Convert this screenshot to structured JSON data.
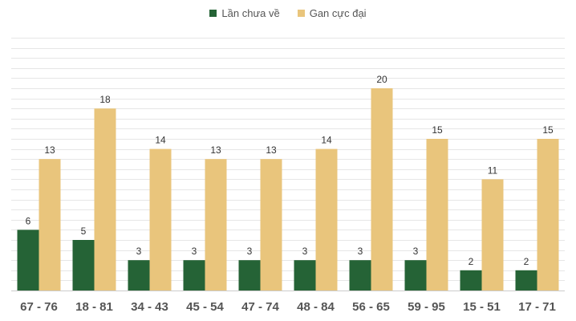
{
  "chart_data": {
    "type": "bar",
    "title": "",
    "xlabel": "",
    "ylabel": "",
    "ylim": [
      0,
      25
    ],
    "grid": true,
    "legend_position": "top-center",
    "categories": [
      "67 - 76",
      "18 - 81",
      "34 - 43",
      "45 - 54",
      "47 - 74",
      "48 - 84",
      "56 - 65",
      "59 - 95",
      "15 - 51",
      "17 - 71"
    ],
    "series": [
      {
        "name": "Lần chưa về",
        "color": "#256336",
        "values": [
          6,
          5,
          3,
          3,
          3,
          3,
          3,
          3,
          2,
          2
        ]
      },
      {
        "name": "Gan cực đại",
        "color": "#e9c57c",
        "values": [
          13,
          18,
          14,
          13,
          13,
          14,
          20,
          15,
          11,
          15
        ]
      }
    ]
  }
}
